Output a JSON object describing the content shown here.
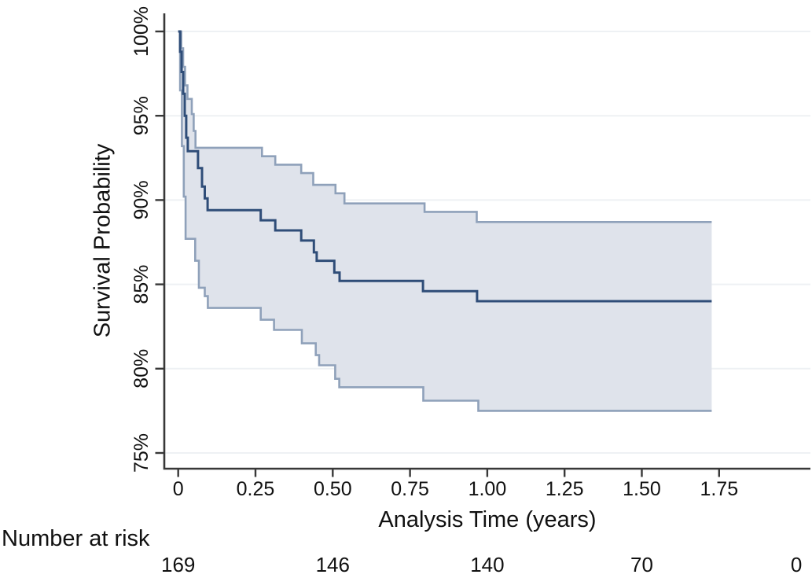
{
  "style": {
    "background": "#ffffff",
    "axis_color": "#383838",
    "grid_color": "#eef1f4",
    "text_color": "#111111",
    "main_line_color": "#2f4d78",
    "ci_line_color": "#8fa1ba",
    "band_fill_color": "#dfe3eb"
  },
  "chart_data": {
    "type": "line",
    "subtype": "kaplan-meier-step-with-confidence-band",
    "title": "",
    "xlabel": "Analysis Time (years)",
    "ylabel": "Survival Probability",
    "xlim": [
      -0.045,
      2.046
    ],
    "ylim": [
      74.1,
      101.0
    ],
    "grid": "horizontal",
    "legend_position": "none",
    "x_ticks": [
      {
        "value": 0,
        "label": "0"
      },
      {
        "value": 0.25,
        "label": "0.25"
      },
      {
        "value": 0.5,
        "label": "0.50"
      },
      {
        "value": 0.75,
        "label": "0.75"
      },
      {
        "value": 1.0,
        "label": "1.00"
      },
      {
        "value": 1.25,
        "label": "1.25"
      },
      {
        "value": 1.5,
        "label": "1.50"
      },
      {
        "value": 1.75,
        "label": "1.75"
      }
    ],
    "y_ticks": [
      {
        "value": 100,
        "label": "100%"
      },
      {
        "value": 95,
        "label": "95%"
      },
      {
        "value": 90,
        "label": "90%"
      },
      {
        "value": 85,
        "label": "85%"
      },
      {
        "value": 80,
        "label": "80%"
      },
      {
        "value": 75,
        "label": "75%"
      }
    ],
    "end_time": 1.726,
    "series": [
      {
        "name": "survival-estimate",
        "role": "main",
        "steps": [
          [
            0,
            100
          ],
          [
            0.006,
            98.8
          ],
          [
            0.011,
            97.6
          ],
          [
            0.016,
            96.3
          ],
          [
            0.021,
            95.0
          ],
          [
            0.026,
            93.7
          ],
          [
            0.031,
            92.9
          ],
          [
            0.064,
            91.9
          ],
          [
            0.077,
            90.8
          ],
          [
            0.086,
            90.1
          ],
          [
            0.095,
            89.4
          ],
          [
            0.267,
            88.8
          ],
          [
            0.314,
            88.2
          ],
          [
            0.398,
            87.6
          ],
          [
            0.439,
            86.9
          ],
          [
            0.448,
            86.4
          ],
          [
            0.505,
            85.7
          ],
          [
            0.522,
            85.2
          ],
          [
            0.792,
            84.6
          ],
          [
            0.967,
            84.0
          ]
        ]
      },
      {
        "name": "upper-95ci",
        "role": "ci-upper",
        "steps": [
          [
            0,
            100
          ],
          [
            0.01,
            99.0
          ],
          [
            0.016,
            97.9
          ],
          [
            0.022,
            96.8
          ],
          [
            0.03,
            96.0
          ],
          [
            0.044,
            95.1
          ],
          [
            0.05,
            94.1
          ],
          [
            0.056,
            93.1
          ],
          [
            0.271,
            92.6
          ],
          [
            0.314,
            92.1
          ],
          [
            0.398,
            91.6
          ],
          [
            0.437,
            90.9
          ],
          [
            0.509,
            90.4
          ],
          [
            0.538,
            89.8
          ],
          [
            0.797,
            89.3
          ],
          [
            0.966,
            88.7
          ]
        ]
      },
      {
        "name": "lower-95ci",
        "role": "ci-lower",
        "steps": [
          [
            0,
            100
          ],
          [
            0.006,
            96.5
          ],
          [
            0.012,
            93.2
          ],
          [
            0.018,
            90.2
          ],
          [
            0.024,
            87.7
          ],
          [
            0.055,
            86.4
          ],
          [
            0.067,
            84.8
          ],
          [
            0.086,
            84.3
          ],
          [
            0.096,
            83.6
          ],
          [
            0.267,
            82.9
          ],
          [
            0.31,
            82.3
          ],
          [
            0.4,
            81.5
          ],
          [
            0.445,
            80.8
          ],
          [
            0.456,
            80.2
          ],
          [
            0.508,
            79.4
          ],
          [
            0.521,
            78.9
          ],
          [
            0.793,
            78.1
          ],
          [
            0.971,
            77.5
          ]
        ]
      }
    ],
    "number_at_risk": {
      "label": "Number at risk",
      "times": [
        0,
        0.5,
        1.0,
        1.5,
        2.0
      ],
      "values": [
        "169",
        "146",
        "140",
        "70",
        "0"
      ]
    }
  }
}
